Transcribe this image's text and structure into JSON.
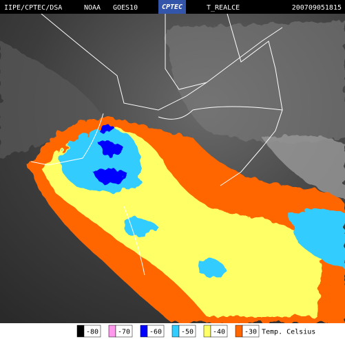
{
  "header": {
    "source": "IIPE/CPTEC/DSA",
    "agency": "NOAA",
    "satellite": "GOES10",
    "logo": "CPTEC",
    "product": "T_REALCE",
    "timestamp": "200709051815"
  },
  "legend": {
    "title": "Temp. Celsius",
    "items": [
      {
        "label": "-80",
        "color": "#000000"
      },
      {
        "label": "-70",
        "color": "#ff99ee"
      },
      {
        "label": "-60",
        "color": "#0000ff"
      },
      {
        "label": "-50",
        "color": "#33ccff"
      },
      {
        "label": "-40",
        "color": "#ffff66"
      },
      {
        "label": "-30",
        "color": "#ff6600"
      }
    ]
  }
}
